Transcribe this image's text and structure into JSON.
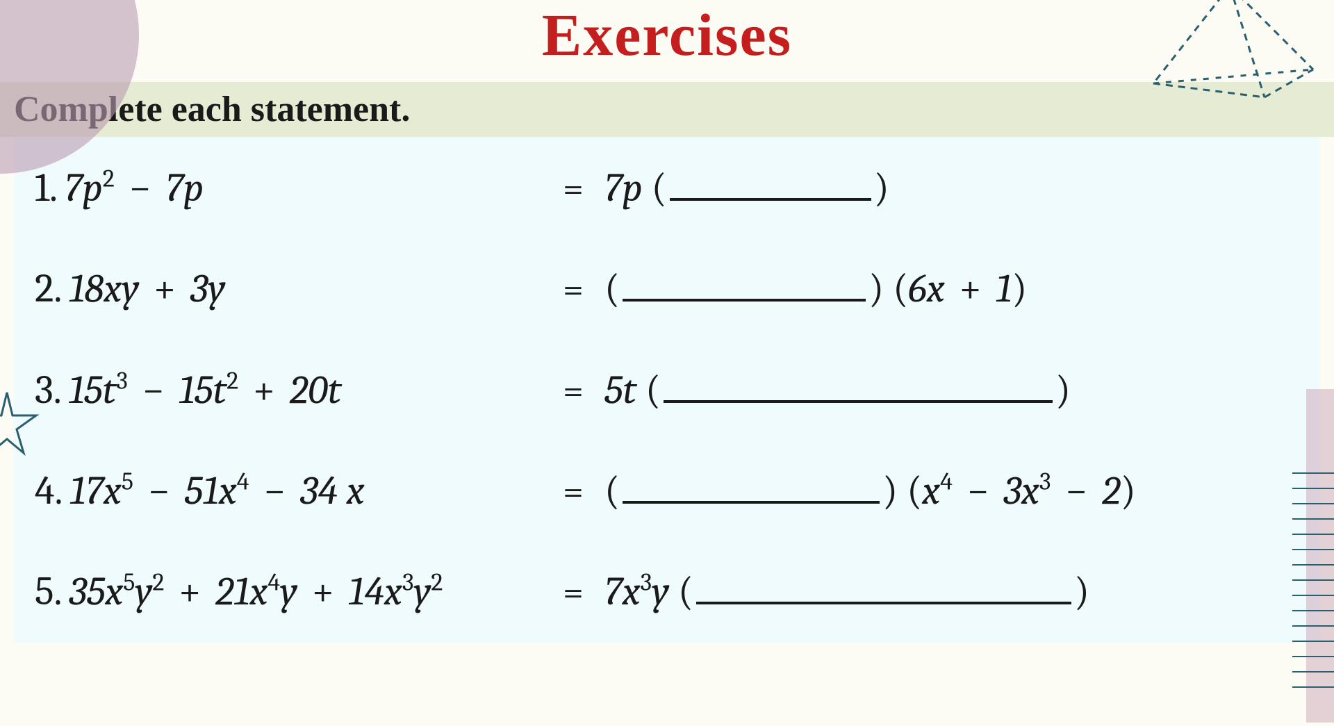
{
  "page": {
    "title": "Exercises",
    "title_color": "#c41e1e",
    "title_fontsize": 86,
    "instruction": "Complete each statement.",
    "instruction_bg": "#e6ecd4",
    "instruction_fontsize": 52,
    "panel_bg": "#f0fbfd",
    "body_bg": "#fdfcf4",
    "text_color": "#1a1a1a",
    "row_fontsize": 58
  },
  "decor": {
    "circle_color": "#b99bb0",
    "pyramid_stroke": "#2a5f6f",
    "lines_color": "#2a5f6f",
    "pink_strip": "#c9a6b8"
  },
  "exercises": [
    {
      "num": "1.",
      "lhs_html": "7<span class='var'>p</span><sup>2</sup> <span class='op'>−</span> 7<span class='var'>p</span>",
      "rhs_prefix_html": "7<span class='var'>p</span> <span class='paren'>(</span>",
      "blank_width": 290,
      "rhs_suffix_html": "<span class='paren'>)</span>"
    },
    {
      "num": "2.",
      "lhs_html": "18<span class='var'>xy</span> <span class='op'>+</span> 3<span class='var'>y</span>",
      "rhs_prefix_html": "<span class='paren'>(</span>",
      "blank_width": 350,
      "rhs_suffix_html": "<span class='paren'>)</span> <span class='paren'>(</span>6<span class='var'>x</span> <span class='op'>+</span> 1<span class='paren'>)</span>"
    },
    {
      "num": "3.",
      "lhs_html": "15<span class='var'>t</span><sup>3</sup> <span class='op'>−</span> 15<span class='var'>t</span><sup>2</sup> <span class='op'>+</span> 20<span class='var'>t</span>",
      "rhs_prefix_html": "5<span class='var'>t</span> <span class='paren'>(</span>",
      "blank_width": 560,
      "rhs_suffix_html": "<span class='paren'>)</span>"
    },
    {
      "num": "4.",
      "lhs_html": "17<span class='var'>x</span><sup>5</sup> <span class='op'>−</span> 51<span class='var'>x</span><sup>4</sup> <span class='op'>−</span> 34 <span class='var'>x</span>",
      "rhs_prefix_html": "<span class='paren'>(</span>",
      "blank_width": 370,
      "rhs_suffix_html": "<span class='paren'>)</span> <span class='paren'>(</span><span class='var'>x</span><sup>4</sup> <span class='op'>−</span> 3<span class='var'>x</span><sup>3</sup> <span class='op'>−</span> 2<span class='paren'>)</span>"
    },
    {
      "num": "5.",
      "lhs_html": "35<span class='var'>x</span><sup>5</sup><span class='var'>y</span><sup>2</sup> <span class='op'>+</span> 21<span class='var'>x</span><sup>4</sup><span class='var'>y</span> <span class='op'>+</span> 14<span class='var'>x</span><sup>3</sup><span class='var'>y</span><sup>2</sup>",
      "rhs_prefix_html": "7<span class='var'>x</span><sup>3</sup><span class='var'>y</span> <span class='paren'>(</span>",
      "blank_width": 540,
      "rhs_suffix_html": "<span class='paren'>)</span>"
    }
  ]
}
